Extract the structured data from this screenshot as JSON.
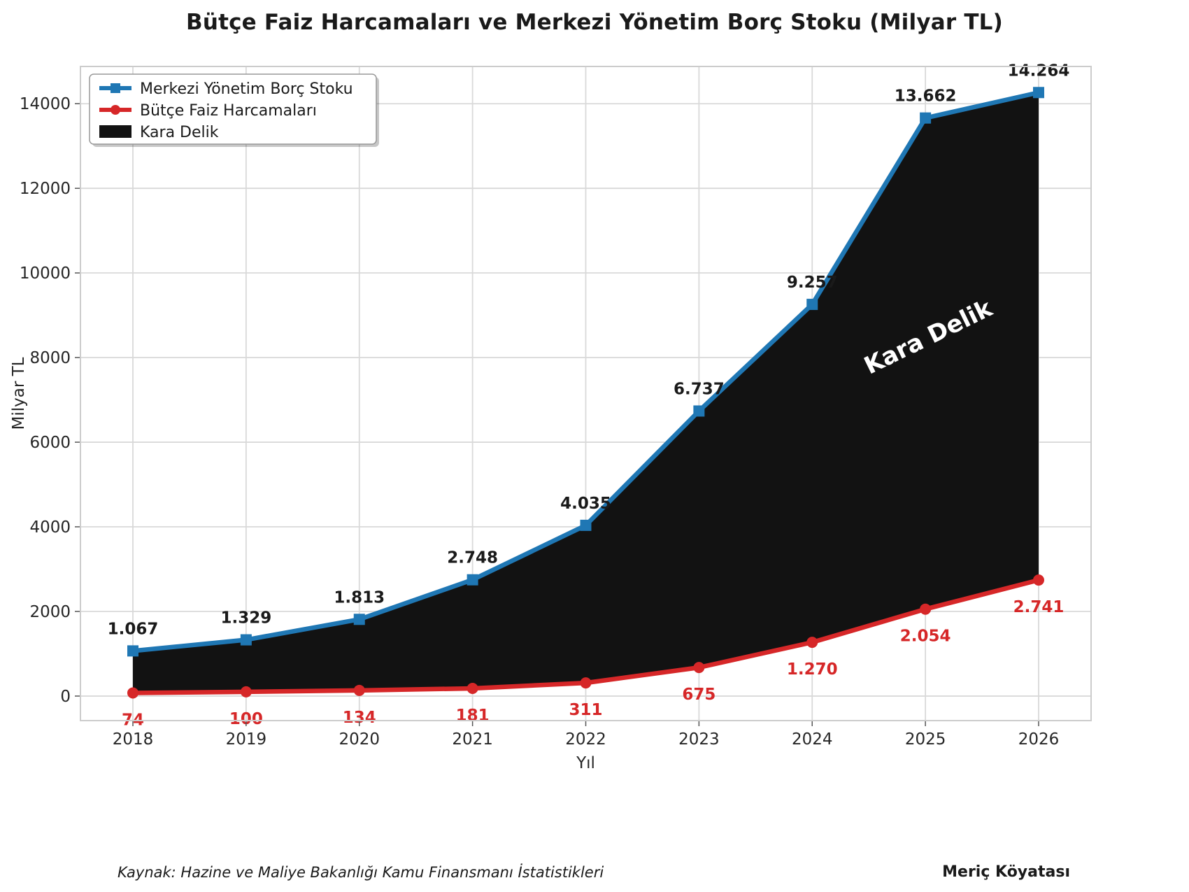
{
  "chart_data": {
    "type": "line",
    "title": "Bütçe Faiz Harcamaları ve Merkezi Yönetim Borç Stoku (Milyar TL)",
    "x": [
      2018,
      2019,
      2020,
      2021,
      2022,
      2023,
      2024,
      2025,
      2026
    ],
    "xlabel": "Yıl",
    "ylabel": "Milyar TL",
    "ylim": [
      0,
      14800
    ],
    "yticks": [
      0,
      2000,
      4000,
      6000,
      8000,
      10000,
      12000,
      14000
    ],
    "grid": true,
    "legend_position": "upper left",
    "series": [
      {
        "name": "Merkezi Yönetim Borç Stoku",
        "marker": "square",
        "color": "#1f77b4",
        "values": [
          1067,
          1329,
          1813,
          2748,
          4035,
          6737,
          9257,
          13662,
          14264
        ],
        "labels": [
          "1.067",
          "1.329",
          "1.813",
          "2.748",
          "4.035",
          "6.737",
          "9.257",
          "13.662",
          "14.264"
        ]
      },
      {
        "name": "Bütçe Faiz Harcamaları",
        "marker": "circle",
        "color": "#d62728",
        "values": [
          74,
          100,
          134,
          181,
          311,
          675,
          1270,
          2054,
          2741
        ],
        "labels": [
          "74",
          "100",
          "134",
          "181",
          "311",
          "675",
          "1.270",
          "2.054",
          "2.741"
        ]
      }
    ],
    "area_between": {
      "name": "Kara Delik",
      "color": "#121212",
      "annotation": "Kara Delik",
      "annotation_color": "#ffffff"
    }
  },
  "footer": {
    "source": "Kaynak: Hazine ve Maliye Bakanlığı Kamu Finansmanı İstatistikleri",
    "author": "Meriç Köyatası"
  }
}
